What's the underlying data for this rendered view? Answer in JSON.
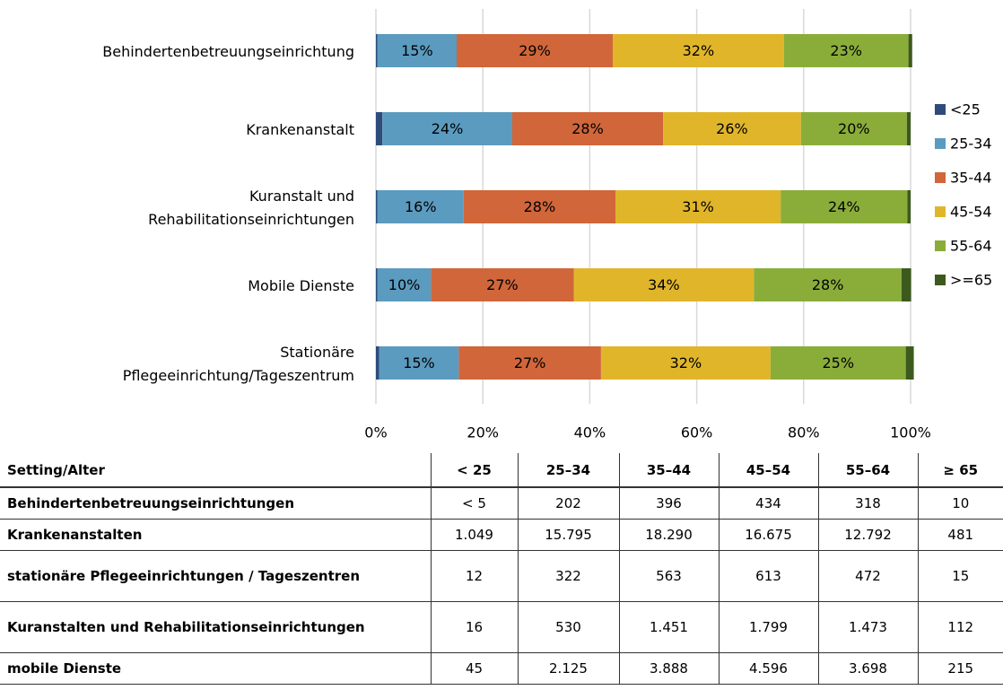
{
  "chart_data": {
    "type": "stacked_barh",
    "categories": [
      "Behindertenbetreuungseinrichtung",
      "Krankenanstalt",
      "Kuranstalt und\nRehabilitationseinrichtungen",
      "Mobile Dienste",
      "Stationäre\nPflegeeinrichtung/Tageszentrum"
    ],
    "series": [
      {
        "name": "<25",
        "color": "#2f4b7c",
        "values": [
          0.3,
          1.2,
          0.3,
          0.3,
          0.6
        ],
        "value_labels": [
          null,
          null,
          null,
          null,
          null
        ]
      },
      {
        "name": "25-34",
        "color": "#5b9bbf",
        "values": [
          14.8,
          24.3,
          16.1,
          10.0,
          14.9
        ],
        "value_labels": [
          "15%",
          "24%",
          "16%",
          "10%",
          "15%"
        ]
      },
      {
        "name": "35-44",
        "color": "#d0663a",
        "values": [
          29.2,
          28.2,
          28.4,
          26.7,
          26.6
        ],
        "value_labels": [
          "29%",
          "28%",
          "28%",
          "27%",
          "27%"
        ]
      },
      {
        "name": "45-54",
        "color": "#e0b52a",
        "values": [
          32.0,
          25.8,
          30.9,
          33.7,
          31.7
        ],
        "value_labels": [
          "32%",
          "26%",
          "31%",
          "34%",
          "32%"
        ]
      },
      {
        "name": "55-64",
        "color": "#8aad3a",
        "values": [
          23.3,
          19.8,
          23.7,
          27.6,
          25.3
        ],
        "value_labels": [
          "23%",
          "20%",
          "24%",
          "28%",
          "25%"
        ]
      },
      {
        "name": ">=65",
        "color": "#3d5a1e",
        "values": [
          0.7,
          0.7,
          0.6,
          1.8,
          1.5
        ],
        "value_labels": [
          null,
          null,
          null,
          null,
          null
        ]
      }
    ],
    "xlim": [
      0,
      100
    ],
    "xticks": [
      {
        "value": 0,
        "label": "0%"
      },
      {
        "value": 20,
        "label": "20%"
      },
      {
        "value": 40,
        "label": "40%"
      },
      {
        "value": 60,
        "label": "60%"
      },
      {
        "value": 80,
        "label": "80%"
      },
      {
        "value": 100,
        "label": "100%"
      }
    ],
    "grid": true,
    "legend": "right"
  },
  "table": {
    "header": [
      "Setting/Alter",
      "< 25",
      "25–34",
      "35–44",
      "45–54",
      "55–64",
      "≥ 65"
    ],
    "rows": [
      [
        "Behindertenbetreuungseinrichtungen",
        "< 5",
        "202",
        "396",
        "434",
        "318",
        "10"
      ],
      [
        "Krankenanstalten",
        "1.049",
        "15.795",
        "18.290",
        "16.675",
        "12.792",
        "481"
      ],
      [
        "stationäre Pflegeeinrichtungen / Tageszentren",
        "12",
        "322",
        "563",
        "613",
        "472",
        "15"
      ],
      [
        "Kuranstalten und Rehabilitationseinrichtungen",
        "16",
        "530",
        "1.451",
        "1.799",
        "1.473",
        "112"
      ],
      [
        "mobile Dienste",
        "45",
        "2.125",
        "3.888",
        "4.596",
        "3.698",
        "215"
      ]
    ]
  }
}
